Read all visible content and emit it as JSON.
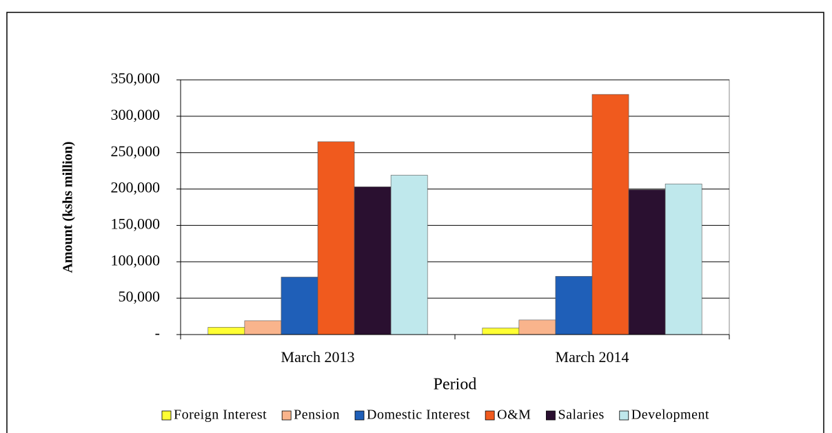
{
  "chart_data": {
    "type": "bar",
    "categories": [
      "March 2013",
      "March 2014"
    ],
    "series": [
      {
        "name": "Foreign Interest",
        "color": "#ffff33",
        "values": [
          10000,
          9000
        ]
      },
      {
        "name": "Pension",
        "color": "#f9b48c",
        "values": [
          19000,
          20000
        ]
      },
      {
        "name": "Domestic Interest",
        "color": "#1f5fb8",
        "values": [
          79000,
          80000
        ]
      },
      {
        "name": "O&M",
        "color": "#f05a1e",
        "values": [
          265000,
          330000
        ]
      },
      {
        "name": "Salaries",
        "color": "#2a1030",
        "values": [
          203000,
          199000
        ]
      },
      {
        "name": "Development",
        "color": "#bfe8ec",
        "values": [
          219000,
          207000
        ]
      }
    ],
    "ylabel": "Amount  (kshs million)",
    "xlabel": "Period",
    "ylim": [
      0,
      350000
    ],
    "yticks": [
      {
        "value": 0,
        "label": "-"
      },
      {
        "value": 50000,
        "label": "50,000"
      },
      {
        "value": 100000,
        "label": "100,000"
      },
      {
        "value": 150000,
        "label": "150,000"
      },
      {
        "value": 200000,
        "label": "200,000"
      },
      {
        "value": 250000,
        "label": "250,000"
      },
      {
        "value": 300000,
        "label": "300,000"
      },
      {
        "value": 350000,
        "label": "350,000"
      }
    ],
    "grid": true,
    "legend": "bottom"
  }
}
